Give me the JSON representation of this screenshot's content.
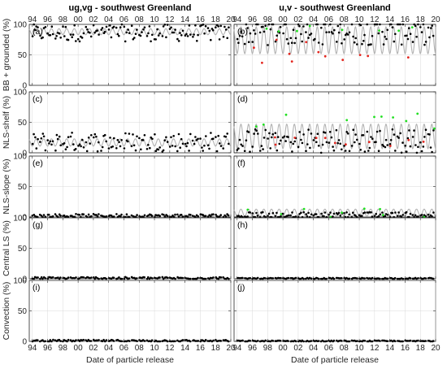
{
  "chart_data": {
    "type": "scatter",
    "column_titles": [
      "ug,vg - southwest Greenland",
      "u,v - southwest Greenland"
    ],
    "xlabel": "Date of particle release",
    "x_tick_labels": [
      "94",
      "96",
      "98",
      "00",
      "02",
      "04",
      "06",
      "08",
      "10",
      "12",
      "14",
      "16",
      "18",
      "20"
    ],
    "x_range_years": [
      1993.6,
      2020.0
    ],
    "ylim": [
      0,
      100
    ],
    "y_ticks": [
      0,
      50,
      100
    ],
    "grid": "vertical and horizontal, light grey",
    "colors": {
      "black_points": "#000000",
      "red_points": "#e3261f",
      "green_points": "#21e021",
      "seasonal_curve": "#b3b3b3"
    },
    "rows": [
      {
        "ylabel": "BB + grounded (%)",
        "panels": [
          {
            "tag": "(a)",
            "black_mean": 86,
            "black_spread": 14,
            "seasonal_mean": 88,
            "seasonal_amp": 5,
            "red": false,
            "green": false
          },
          {
            "tag": "(b)",
            "black_mean": 88,
            "black_spread": 22,
            "seasonal_mean": 74,
            "seasonal_amp": 22,
            "red": true,
            "red_mean": 55,
            "red_spread": 20,
            "green": true,
            "green_mean": 93,
            "green_spread": 5
          }
        ]
      },
      {
        "ylabel": "NLS-shelf (%)",
        "panels": [
          {
            "tag": "(c)",
            "black_mean": 18,
            "black_spread": 16,
            "seasonal_mean": 17,
            "seasonal_amp": 6,
            "red": false,
            "green": false
          },
          {
            "tag": "(d)",
            "black_mean": 20,
            "black_spread": 20,
            "seasonal_mean": 27,
            "seasonal_amp": 20,
            "red": true,
            "red_mean": 18,
            "red_spread": 8,
            "green": true,
            "green_mean": 50,
            "green_spread": 15
          }
        ]
      },
      {
        "ylabel": "NLS-slope (%)",
        "panels": [
          {
            "tag": "(e)",
            "black_mean": 2,
            "black_spread": 3,
            "seasonal_mean": 1,
            "seasonal_amp": 1,
            "red": false,
            "green": false
          },
          {
            "tag": "(f)",
            "black_mean": 3,
            "black_spread": 5,
            "seasonal_mean": 7,
            "seasonal_amp": 6,
            "red": false,
            "green": true,
            "green_mean": 8,
            "green_spread": 12
          }
        ]
      },
      {
        "ylabel": "Central LS (%)",
        "panels": [
          {
            "tag": "(g)",
            "black_mean": 1,
            "black_spread": 2,
            "seasonal_mean": 0.5,
            "seasonal_amp": 0.3,
            "red": false,
            "green": false
          },
          {
            "tag": "(h)",
            "black_mean": 0.5,
            "black_spread": 1,
            "seasonal_mean": 0.5,
            "seasonal_amp": 0.3,
            "red": false,
            "green": false
          }
        ]
      },
      {
        "ylabel": "Convection (%)",
        "panels": [
          {
            "tag": "(i)",
            "black_mean": 1,
            "black_spread": 1.5,
            "seasonal_mean": 0.5,
            "seasonal_amp": 0.3,
            "red": false,
            "green": false
          },
          {
            "tag": "(j)",
            "black_mean": 0.5,
            "black_spread": 1,
            "seasonal_mean": 0.5,
            "seasonal_amp": 0.3,
            "red": false,
            "green": false
          }
        ]
      }
    ]
  }
}
